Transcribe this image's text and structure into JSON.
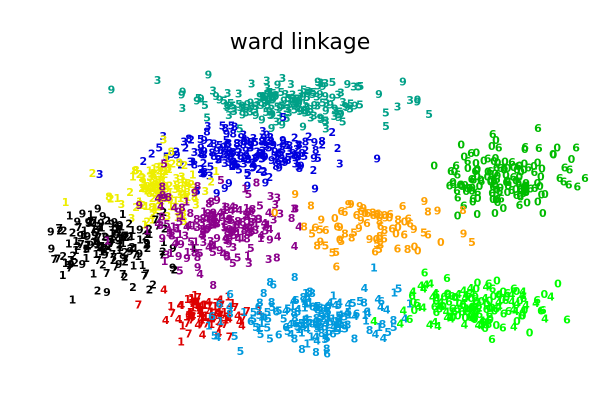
{
  "chart_data": {
    "type": "scatter",
    "title": "ward linkage",
    "xlabel": "",
    "ylabel": "",
    "axes_visible": false,
    "grid": false,
    "legend": "none",
    "xlim": [
      0,
      1
    ],
    "ylim": [
      0,
      1
    ],
    "marker": "digit-glyph",
    "clusters": [
      {
        "color": "#00a087",
        "digits": [
          "3",
          "9",
          "5"
        ],
        "center": [
          0.46,
          0.84
        ],
        "spread": [
          0.12,
          0.045
        ],
        "count": 170
      },
      {
        "color": "#0000dd",
        "digits": [
          "3",
          "9",
          "2",
          "8",
          "5"
        ],
        "center": [
          0.38,
          0.68
        ],
        "spread": [
          0.1,
          0.055
        ],
        "count": 190
      },
      {
        "color": "#eeee00",
        "digits": [
          "2",
          "8",
          "3",
          "1"
        ],
        "center": [
          0.23,
          0.57
        ],
        "spread": [
          0.055,
          0.065
        ],
        "count": 130
      },
      {
        "color": "#000000",
        "digits": [
          "7",
          "2",
          "1",
          "9"
        ],
        "center": [
          0.14,
          0.4
        ],
        "spread": [
          0.075,
          0.07
        ],
        "count": 160
      },
      {
        "color": "#8b008b",
        "digits": [
          "8",
          "1",
          "5",
          "9",
          "4",
          "3"
        ],
        "center": [
          0.34,
          0.45
        ],
        "spread": [
          0.085,
          0.075
        ],
        "count": 190
      },
      {
        "color": "#dd0000",
        "digits": [
          "4",
          "1",
          "7"
        ],
        "center": [
          0.32,
          0.18
        ],
        "spread": [
          0.05,
          0.04
        ],
        "count": 90
      },
      {
        "color": "#0099dd",
        "digits": [
          "4",
          "5",
          "6",
          "1",
          "8"
        ],
        "center": [
          0.52,
          0.17
        ],
        "spread": [
          0.1,
          0.06
        ],
        "count": 170
      },
      {
        "color": "#00ff00",
        "digits": [
          "6",
          "0",
          "4"
        ],
        "center": [
          0.8,
          0.2
        ],
        "spread": [
          0.08,
          0.05
        ],
        "count": 150
      },
      {
        "color": "#00bb00",
        "digits": [
          "0",
          "6"
        ],
        "center": [
          0.86,
          0.6
        ],
        "spread": [
          0.075,
          0.075
        ],
        "count": 150
      },
      {
        "color": "#ffa000",
        "digits": [
          "5",
          "8",
          "6",
          "0",
          "9"
        ],
        "center": [
          0.62,
          0.44
        ],
        "spread": [
          0.09,
          0.07
        ],
        "count": 80
      }
    ]
  }
}
